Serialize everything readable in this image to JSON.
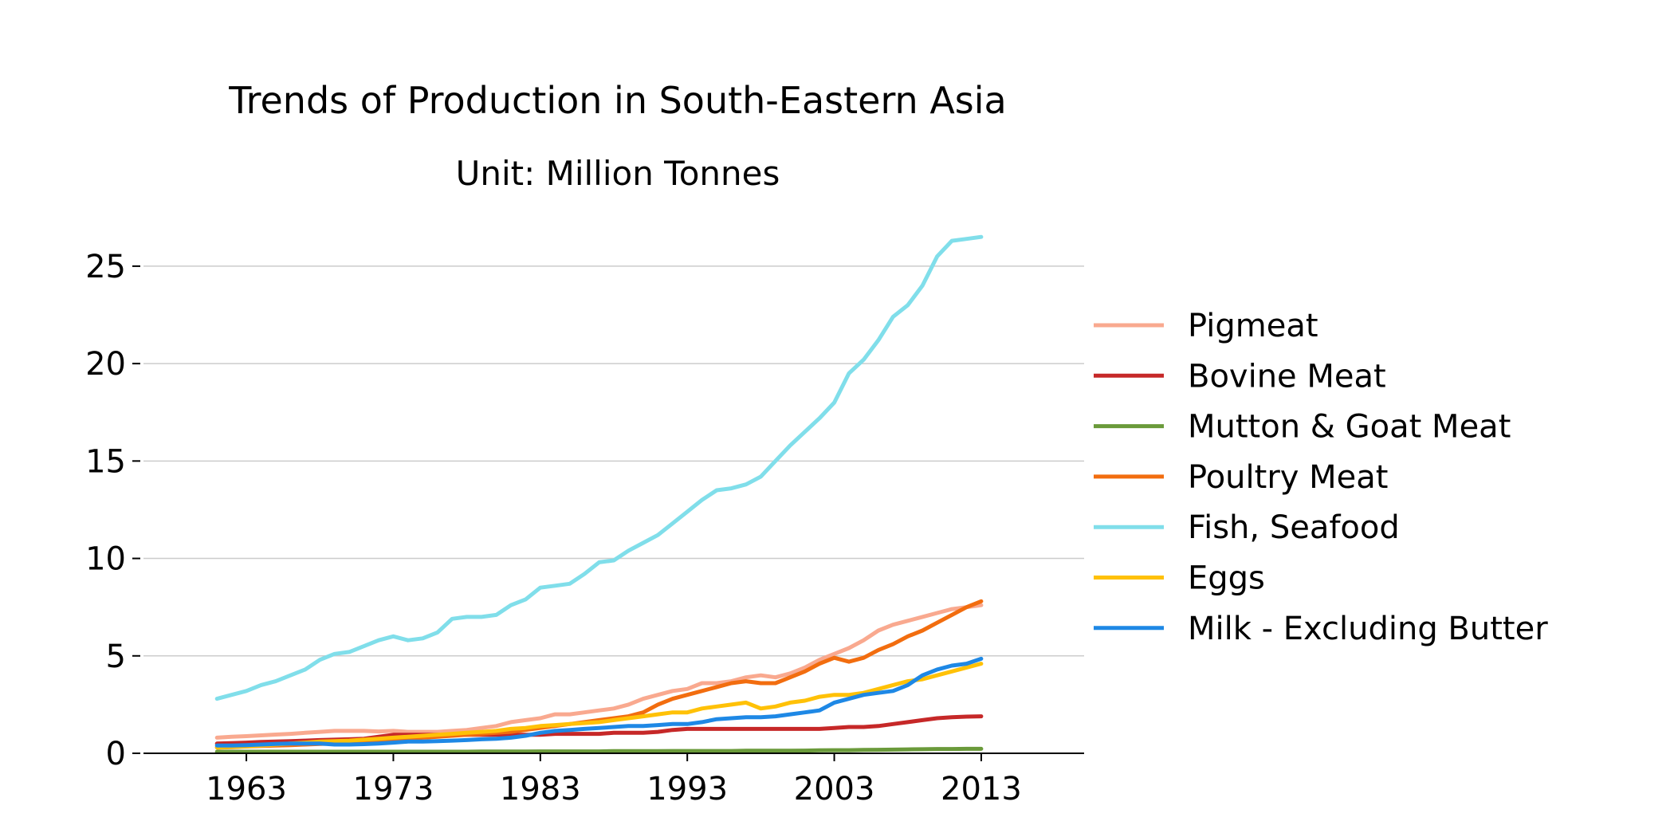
{
  "chart_data": {
    "type": "line",
    "title": "Trends of Production in South-Eastern Asia",
    "subtitle": "Unit: Million Tonnes",
    "xlabel": "",
    "ylabel": "",
    "xlim": [
      1956,
      2020
    ],
    "ylim": [
      0,
      27
    ],
    "xticks": [
      1963,
      1973,
      1983,
      1993,
      2003,
      2013
    ],
    "yticks": [
      0,
      5,
      10,
      15,
      20,
      25
    ],
    "grid": "horizontal",
    "legend_position": "right",
    "x": [
      1961,
      1962,
      1963,
      1964,
      1965,
      1966,
      1967,
      1968,
      1969,
      1970,
      1971,
      1972,
      1973,
      1974,
      1975,
      1976,
      1977,
      1978,
      1979,
      1980,
      1981,
      1982,
      1983,
      1984,
      1985,
      1986,
      1987,
      1988,
      1989,
      1990,
      1991,
      1992,
      1993,
      1994,
      1995,
      1996,
      1997,
      1998,
      1999,
      2000,
      2001,
      2002,
      2003,
      2004,
      2005,
      2006,
      2007,
      2008,
      2009,
      2010,
      2011,
      2012,
      2013
    ],
    "series": [
      {
        "name": "Pigmeat",
        "color": "#f9a98f",
        "values": [
          0.8,
          0.85,
          0.88,
          0.92,
          0.96,
          1.0,
          1.05,
          1.1,
          1.15,
          1.15,
          1.15,
          1.12,
          1.15,
          1.1,
          1.1,
          1.1,
          1.15,
          1.2,
          1.3,
          1.4,
          1.6,
          1.7,
          1.8,
          2.0,
          2.0,
          2.1,
          2.2,
          2.3,
          2.5,
          2.8,
          3.0,
          3.2,
          3.3,
          3.6,
          3.6,
          3.7,
          3.9,
          4.0,
          3.9,
          4.1,
          4.4,
          4.8,
          5.1,
          5.4,
          5.8,
          6.3,
          6.6,
          6.8,
          7.0,
          7.2,
          7.4,
          7.5,
          7.6
        ]
      },
      {
        "name": "Bovine Meat",
        "color": "#c62828",
        "values": [
          0.5,
          0.52,
          0.55,
          0.58,
          0.6,
          0.62,
          0.65,
          0.68,
          0.7,
          0.72,
          0.75,
          0.85,
          0.95,
          0.95,
          0.95,
          0.95,
          0.95,
          0.95,
          0.95,
          0.95,
          0.95,
          0.95,
          0.95,
          1.0,
          1.0,
          1.0,
          1.0,
          1.05,
          1.05,
          1.05,
          1.1,
          1.2,
          1.25,
          1.25,
          1.25,
          1.25,
          1.25,
          1.25,
          1.25,
          1.25,
          1.25,
          1.25,
          1.3,
          1.35,
          1.35,
          1.4,
          1.5,
          1.6,
          1.7,
          1.8,
          1.85,
          1.88,
          1.9
        ]
      },
      {
        "name": "Mutton & Goat Meat",
        "color": "#6a9a3a",
        "values": [
          0.08,
          0.08,
          0.08,
          0.08,
          0.08,
          0.08,
          0.08,
          0.08,
          0.08,
          0.08,
          0.08,
          0.08,
          0.08,
          0.08,
          0.08,
          0.08,
          0.08,
          0.08,
          0.09,
          0.09,
          0.09,
          0.09,
          0.1,
          0.1,
          0.1,
          0.1,
          0.1,
          0.11,
          0.11,
          0.11,
          0.11,
          0.12,
          0.12,
          0.12,
          0.12,
          0.12,
          0.13,
          0.13,
          0.13,
          0.13,
          0.14,
          0.15,
          0.16,
          0.16,
          0.17,
          0.18,
          0.19,
          0.2,
          0.21,
          0.22,
          0.22,
          0.23,
          0.23
        ]
      },
      {
        "name": "Poultry Meat",
        "color": "#f26d0f",
        "values": [
          0.3,
          0.32,
          0.35,
          0.38,
          0.4,
          0.42,
          0.45,
          0.48,
          0.5,
          0.55,
          0.6,
          0.65,
          0.7,
          0.75,
          0.8,
          0.85,
          0.9,
          0.95,
          1.0,
          1.05,
          1.1,
          1.2,
          1.3,
          1.4,
          1.5,
          1.6,
          1.7,
          1.8,
          1.9,
          2.1,
          2.5,
          2.8,
          3.0,
          3.2,
          3.4,
          3.6,
          3.7,
          3.6,
          3.6,
          3.9,
          4.2,
          4.6,
          4.9,
          4.7,
          4.9,
          5.3,
          5.6,
          6.0,
          6.3,
          6.7,
          7.1,
          7.5,
          7.8
        ]
      },
      {
        "name": "Fish, Seafood",
        "color": "#80deea",
        "values": [
          2.8,
          3.0,
          3.2,
          3.5,
          3.7,
          4.0,
          4.3,
          4.8,
          5.1,
          5.2,
          5.5,
          5.8,
          6.0,
          5.8,
          5.9,
          6.2,
          6.9,
          7.0,
          7.0,
          7.1,
          7.6,
          7.9,
          8.5,
          8.6,
          8.7,
          9.2,
          9.8,
          9.9,
          10.4,
          10.8,
          11.2,
          11.8,
          12.4,
          13.0,
          13.5,
          13.6,
          13.8,
          14.2,
          15.0,
          15.8,
          16.5,
          17.2,
          18.0,
          19.5,
          20.2,
          21.2,
          22.4,
          23.0,
          24.0,
          25.5,
          26.3,
          26.4,
          26.5
        ]
      },
      {
        "name": "Eggs",
        "color": "#ffc107",
        "values": [
          0.3,
          0.33,
          0.36,
          0.4,
          0.45,
          0.5,
          0.55,
          0.6,
          0.62,
          0.65,
          0.7,
          0.75,
          0.8,
          0.85,
          0.9,
          0.95,
          1.0,
          1.05,
          1.1,
          1.15,
          1.25,
          1.3,
          1.4,
          1.45,
          1.5,
          1.55,
          1.6,
          1.7,
          1.8,
          1.9,
          2.0,
          2.1,
          2.1,
          2.3,
          2.4,
          2.5,
          2.6,
          2.3,
          2.4,
          2.6,
          2.7,
          2.9,
          3.0,
          3.0,
          3.1,
          3.3,
          3.5,
          3.7,
          3.8,
          4.0,
          4.2,
          4.4,
          4.6
        ]
      },
      {
        "name": "Milk - Excluding Butter",
        "color": "#1e88e5",
        "values": [
          0.4,
          0.4,
          0.42,
          0.45,
          0.48,
          0.5,
          0.5,
          0.5,
          0.45,
          0.45,
          0.47,
          0.5,
          0.55,
          0.6,
          0.6,
          0.62,
          0.65,
          0.68,
          0.72,
          0.75,
          0.8,
          0.9,
          1.05,
          1.15,
          1.2,
          1.25,
          1.3,
          1.35,
          1.4,
          1.4,
          1.45,
          1.5,
          1.5,
          1.6,
          1.75,
          1.8,
          1.85,
          1.85,
          1.9,
          2.0,
          2.1,
          2.2,
          2.6,
          2.8,
          3.0,
          3.1,
          3.2,
          3.5,
          4.0,
          4.3,
          4.5,
          4.6,
          4.85
        ]
      }
    ]
  }
}
